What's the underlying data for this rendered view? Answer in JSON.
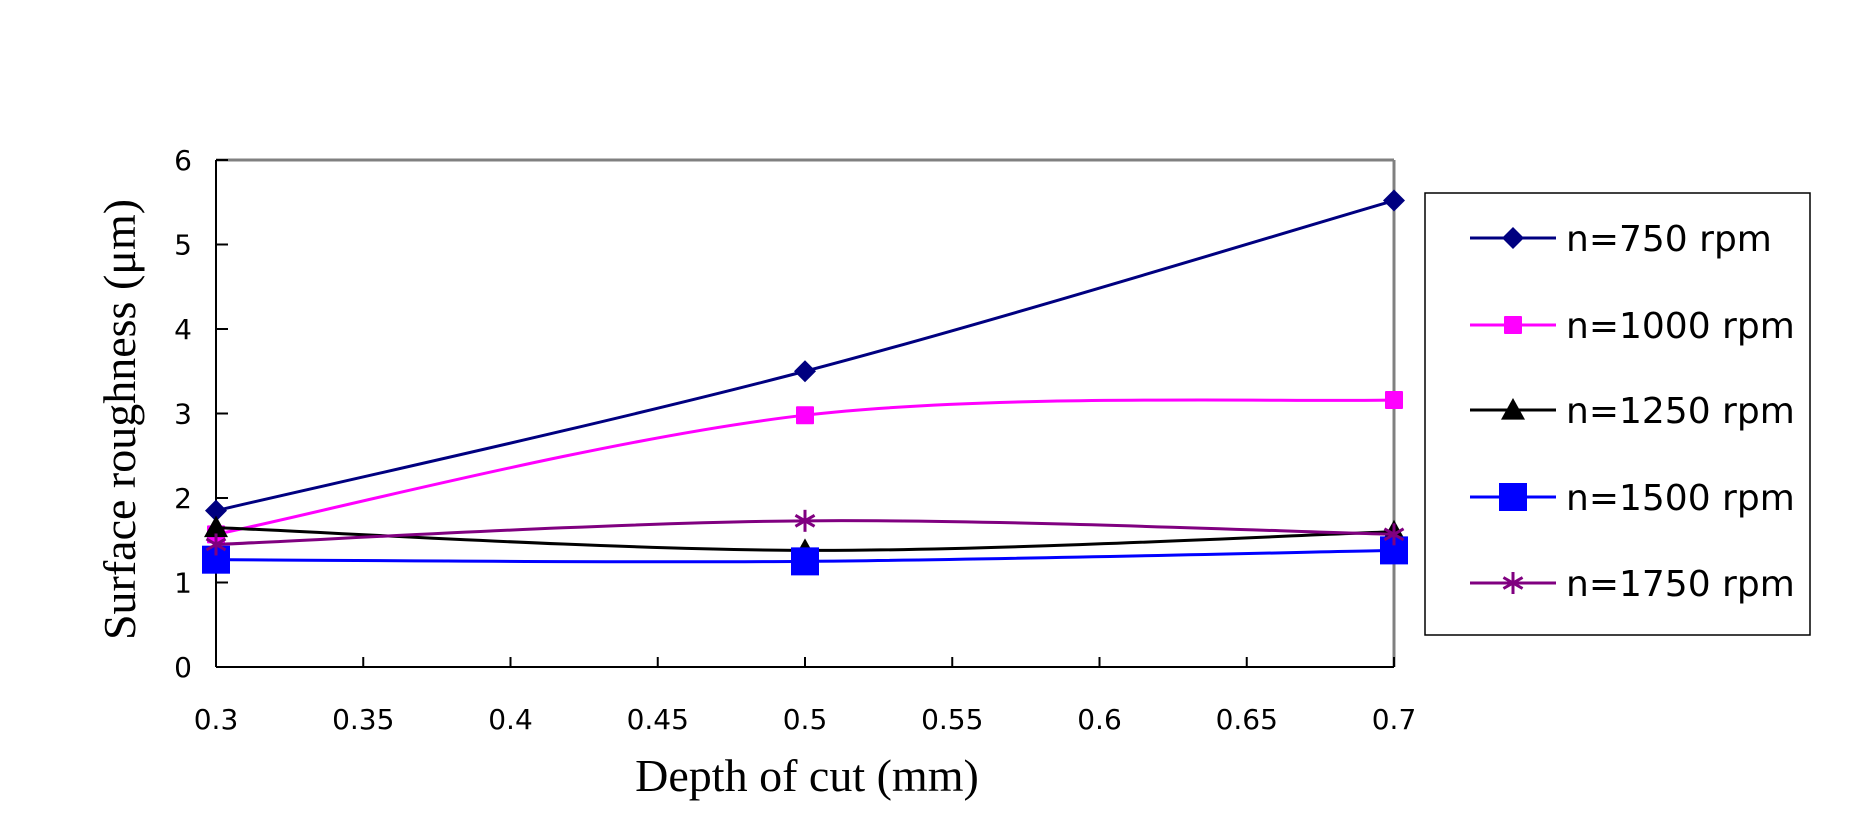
{
  "chart_data": {
    "type": "line",
    "title": "",
    "xlabel": "Depth of cut (mm)",
    "ylabel": "Surface roughness (μm)",
    "xlim": [
      0.3,
      0.7
    ],
    "ylim": [
      0,
      6
    ],
    "x_ticks": [
      "0.3",
      "0.35",
      "0.4",
      "0.45",
      "0.5",
      "0.55",
      "0.6",
      "0.65",
      "0.7"
    ],
    "y_ticks": [
      "0",
      "1",
      "2",
      "3",
      "4",
      "5",
      "6"
    ],
    "grid": false,
    "smoothed": true,
    "legend_position": "right",
    "x": [
      0.3,
      0.5,
      0.7
    ],
    "series": [
      {
        "name": "n=750 rpm",
        "values": [
          1.85,
          3.5,
          5.52
        ],
        "color": "#000080",
        "marker": "diamond"
      },
      {
        "name": "n=1000 rpm",
        "values": [
          1.57,
          2.98,
          3.16
        ],
        "color": "#ff00ff",
        "marker": "square"
      },
      {
        "name": "n=1250 rpm",
        "values": [
          1.65,
          1.38,
          1.6
        ],
        "color": "#000000",
        "marker": "triangle"
      },
      {
        "name": "n=1500 rpm",
        "values": [
          1.27,
          1.25,
          1.38
        ],
        "color": "#0000ff",
        "marker": "square-large"
      },
      {
        "name": "n=1750 rpm",
        "values": [
          1.45,
          1.73,
          1.57
        ],
        "color": "#800080",
        "marker": "asterisk"
      }
    ]
  }
}
